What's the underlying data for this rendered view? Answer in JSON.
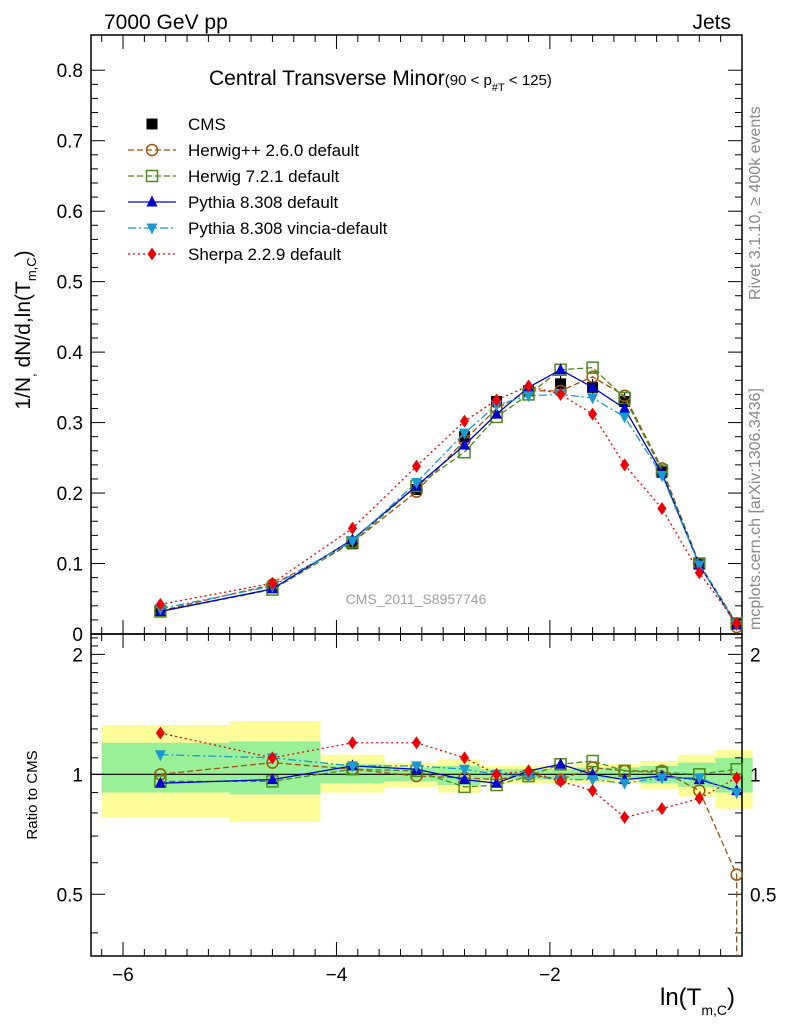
{
  "header": {
    "left": "7000 GeV pp",
    "right": "Jets"
  },
  "side_text": {
    "rivet": "Rivet 3.1.10, ≥ 400k events",
    "mcplots": "mcplots.cern.ch [arXiv:1306.3436]"
  },
  "watermark": "CMS_2011_S8957746",
  "colors": {
    "cms": "#000000",
    "herwigpp": "#a0520a",
    "herwig7": "#4a8a1a",
    "pythia": "#0000cc",
    "vincia": "#1a9ad0",
    "sherpa": "#ee0000",
    "band_yellow": "#fdfd99",
    "band_green": "#99f099"
  },
  "chart_data": [
    {
      "type": "line",
      "title": "Central Transverse Minor",
      "title_suffix": "(90 < p",
      "title_sub": "#T",
      "title_end": " < 125)",
      "ylabel_parts": [
        "1/N",
        ",",
        " dN/d,ln(T",
        "m,C",
        ")"
      ],
      "ylim": [
        0,
        0.85
      ],
      "xlim": [
        -6.3,
        -0.2
      ],
      "yticks": [
        "0",
        "0.1",
        "0.2",
        "0.3",
        "0.4",
        "0.5",
        "0.6",
        "0.7",
        "0.8"
      ],
      "legend_position": "top-left",
      "x": [
        -5.65,
        -4.6,
        -3.85,
        -3.25,
        -2.8,
        -2.5,
        -2.2,
        -1.9,
        -1.6,
        -1.3,
        -0.95,
        -0.6,
        -0.25
      ],
      "series": [
        {
          "name": "CMS",
          "key": "cms",
          "marker": "square",
          "style": "none",
          "values": [
            0.033,
            0.066,
            0.128,
            0.205,
            0.28,
            0.33,
            0.345,
            0.355,
            0.35,
            0.33,
            0.23,
            0.1,
            0.015
          ]
        },
        {
          "name": "Herwig++ 2.6.0 default",
          "key": "herwigpp",
          "marker": "circle-open",
          "style": "dashed",
          "values": [
            0.033,
            0.07,
            0.13,
            0.202,
            0.275,
            0.32,
            0.345,
            0.345,
            0.365,
            0.338,
            0.235,
            0.1,
            0.01
          ]
        },
        {
          "name": "Herwig 7.2.1 default",
          "key": "herwig7",
          "marker": "square-open",
          "style": "dashed",
          "values": [
            0.032,
            0.063,
            0.13,
            0.21,
            0.258,
            0.308,
            0.34,
            0.375,
            0.378,
            0.335,
            0.232,
            0.1,
            0.015
          ]
        },
        {
          "name": "Pythia 8.308 default",
          "key": "pythia",
          "marker": "triangle-up",
          "style": "solid",
          "values": [
            0.032,
            0.064,
            0.134,
            0.21,
            0.268,
            0.312,
            0.35,
            0.375,
            0.35,
            0.32,
            0.228,
            0.098,
            0.013
          ]
        },
        {
          "name": "Pythia 8.308 vincia-default",
          "key": "vincia",
          "marker": "triangle-down",
          "style": "dashdot",
          "values": [
            0.036,
            0.068,
            0.132,
            0.215,
            0.285,
            0.325,
            0.338,
            0.34,
            0.335,
            0.308,
            0.225,
            0.098,
            0.013
          ]
        },
        {
          "name": "Sherpa 2.2.9 default",
          "key": "sherpa",
          "marker": "diamond",
          "style": "dotted",
          "values": [
            0.042,
            0.072,
            0.15,
            0.238,
            0.302,
            0.332,
            0.352,
            0.34,
            0.312,
            0.24,
            0.178,
            0.087,
            0.015
          ]
        }
      ],
      "cms_errors": [
        0.002,
        0.003,
        0.005,
        0.006,
        0.01,
        0.01,
        0.012,
        0.012,
        0.012,
        0.012,
        0.01,
        0.005,
        0.003
      ]
    },
    {
      "type": "line",
      "ylabel": "Ratio to CMS",
      "xlabel": "ln(T",
      "xlabel_sub": "m,C",
      "xlabel_end": ")",
      "ylim": [
        0.35,
        2.25
      ],
      "yticks": [
        "0.5",
        "1",
        "2"
      ],
      "xticks": [
        "−6",
        "−4",
        "−2"
      ],
      "bands": {
        "edges": [
          -6.2,
          -5.0,
          -4.15,
          -3.55,
          -3.05,
          -2.65,
          -2.35,
          -2.05,
          -1.75,
          -1.45,
          -1.15,
          -0.8,
          -0.45,
          -0.1
        ],
        "yellow": [
          [
            0.78,
            1.33
          ],
          [
            0.76,
            1.36
          ],
          [
            0.9,
            1.12
          ],
          [
            0.93,
            1.07
          ],
          [
            0.9,
            1.09
          ],
          [
            0.95,
            1.05
          ],
          [
            0.95,
            1.05
          ],
          [
            0.95,
            1.05
          ],
          [
            0.95,
            1.06
          ],
          [
            0.95,
            1.06
          ],
          [
            0.92,
            1.08
          ],
          [
            0.88,
            1.12
          ],
          [
            0.82,
            1.15
          ]
        ],
        "green": [
          [
            0.9,
            1.2
          ],
          [
            0.89,
            1.21
          ],
          [
            0.95,
            1.06
          ],
          [
            0.96,
            1.04
          ],
          [
            0.94,
            1.05
          ],
          [
            0.97,
            1.03
          ],
          [
            0.97,
            1.03
          ],
          [
            0.97,
            1.03
          ],
          [
            0.97,
            1.04
          ],
          [
            0.97,
            1.04
          ],
          [
            0.95,
            1.05
          ],
          [
            0.93,
            1.07
          ],
          [
            0.9,
            1.1
          ]
        ]
      },
      "series": [
        {
          "name": "Herwig++ 2.6.0 default",
          "key": "herwigpp",
          "values": [
            1.0,
            1.07,
            1.03,
            0.99,
            0.98,
            0.97,
            1.0,
            0.97,
            1.04,
            1.02,
            1.02,
            0.91,
            0.56
          ]
        },
        {
          "name": "Herwig 7.2.1 default",
          "key": "herwig7",
          "values": [
            0.96,
            0.96,
            1.03,
            1.02,
            0.93,
            0.94,
            0.99,
            1.06,
            1.08,
            1.02,
            1.01,
            1.0,
            1.03
          ]
        },
        {
          "name": "Pythia 8.308 default",
          "key": "pythia",
          "values": [
            0.95,
            0.97,
            1.05,
            1.03,
            0.97,
            0.95,
            1.02,
            1.06,
            1.0,
            0.97,
            0.99,
            0.97,
            0.91
          ]
        },
        {
          "name": "Pythia 8.308 vincia-default",
          "key": "vincia",
          "values": [
            1.12,
            1.1,
            1.05,
            1.05,
            1.03,
            1.0,
            0.99,
            0.97,
            0.97,
            0.95,
            0.98,
            0.98,
            0.9
          ]
        },
        {
          "name": "Sherpa 2.2.9 default",
          "key": "sherpa",
          "values": [
            1.27,
            1.1,
            1.2,
            1.2,
            1.1,
            1.0,
            1.02,
            0.96,
            0.91,
            0.78,
            0.82,
            0.87,
            0.98
          ]
        }
      ]
    }
  ]
}
